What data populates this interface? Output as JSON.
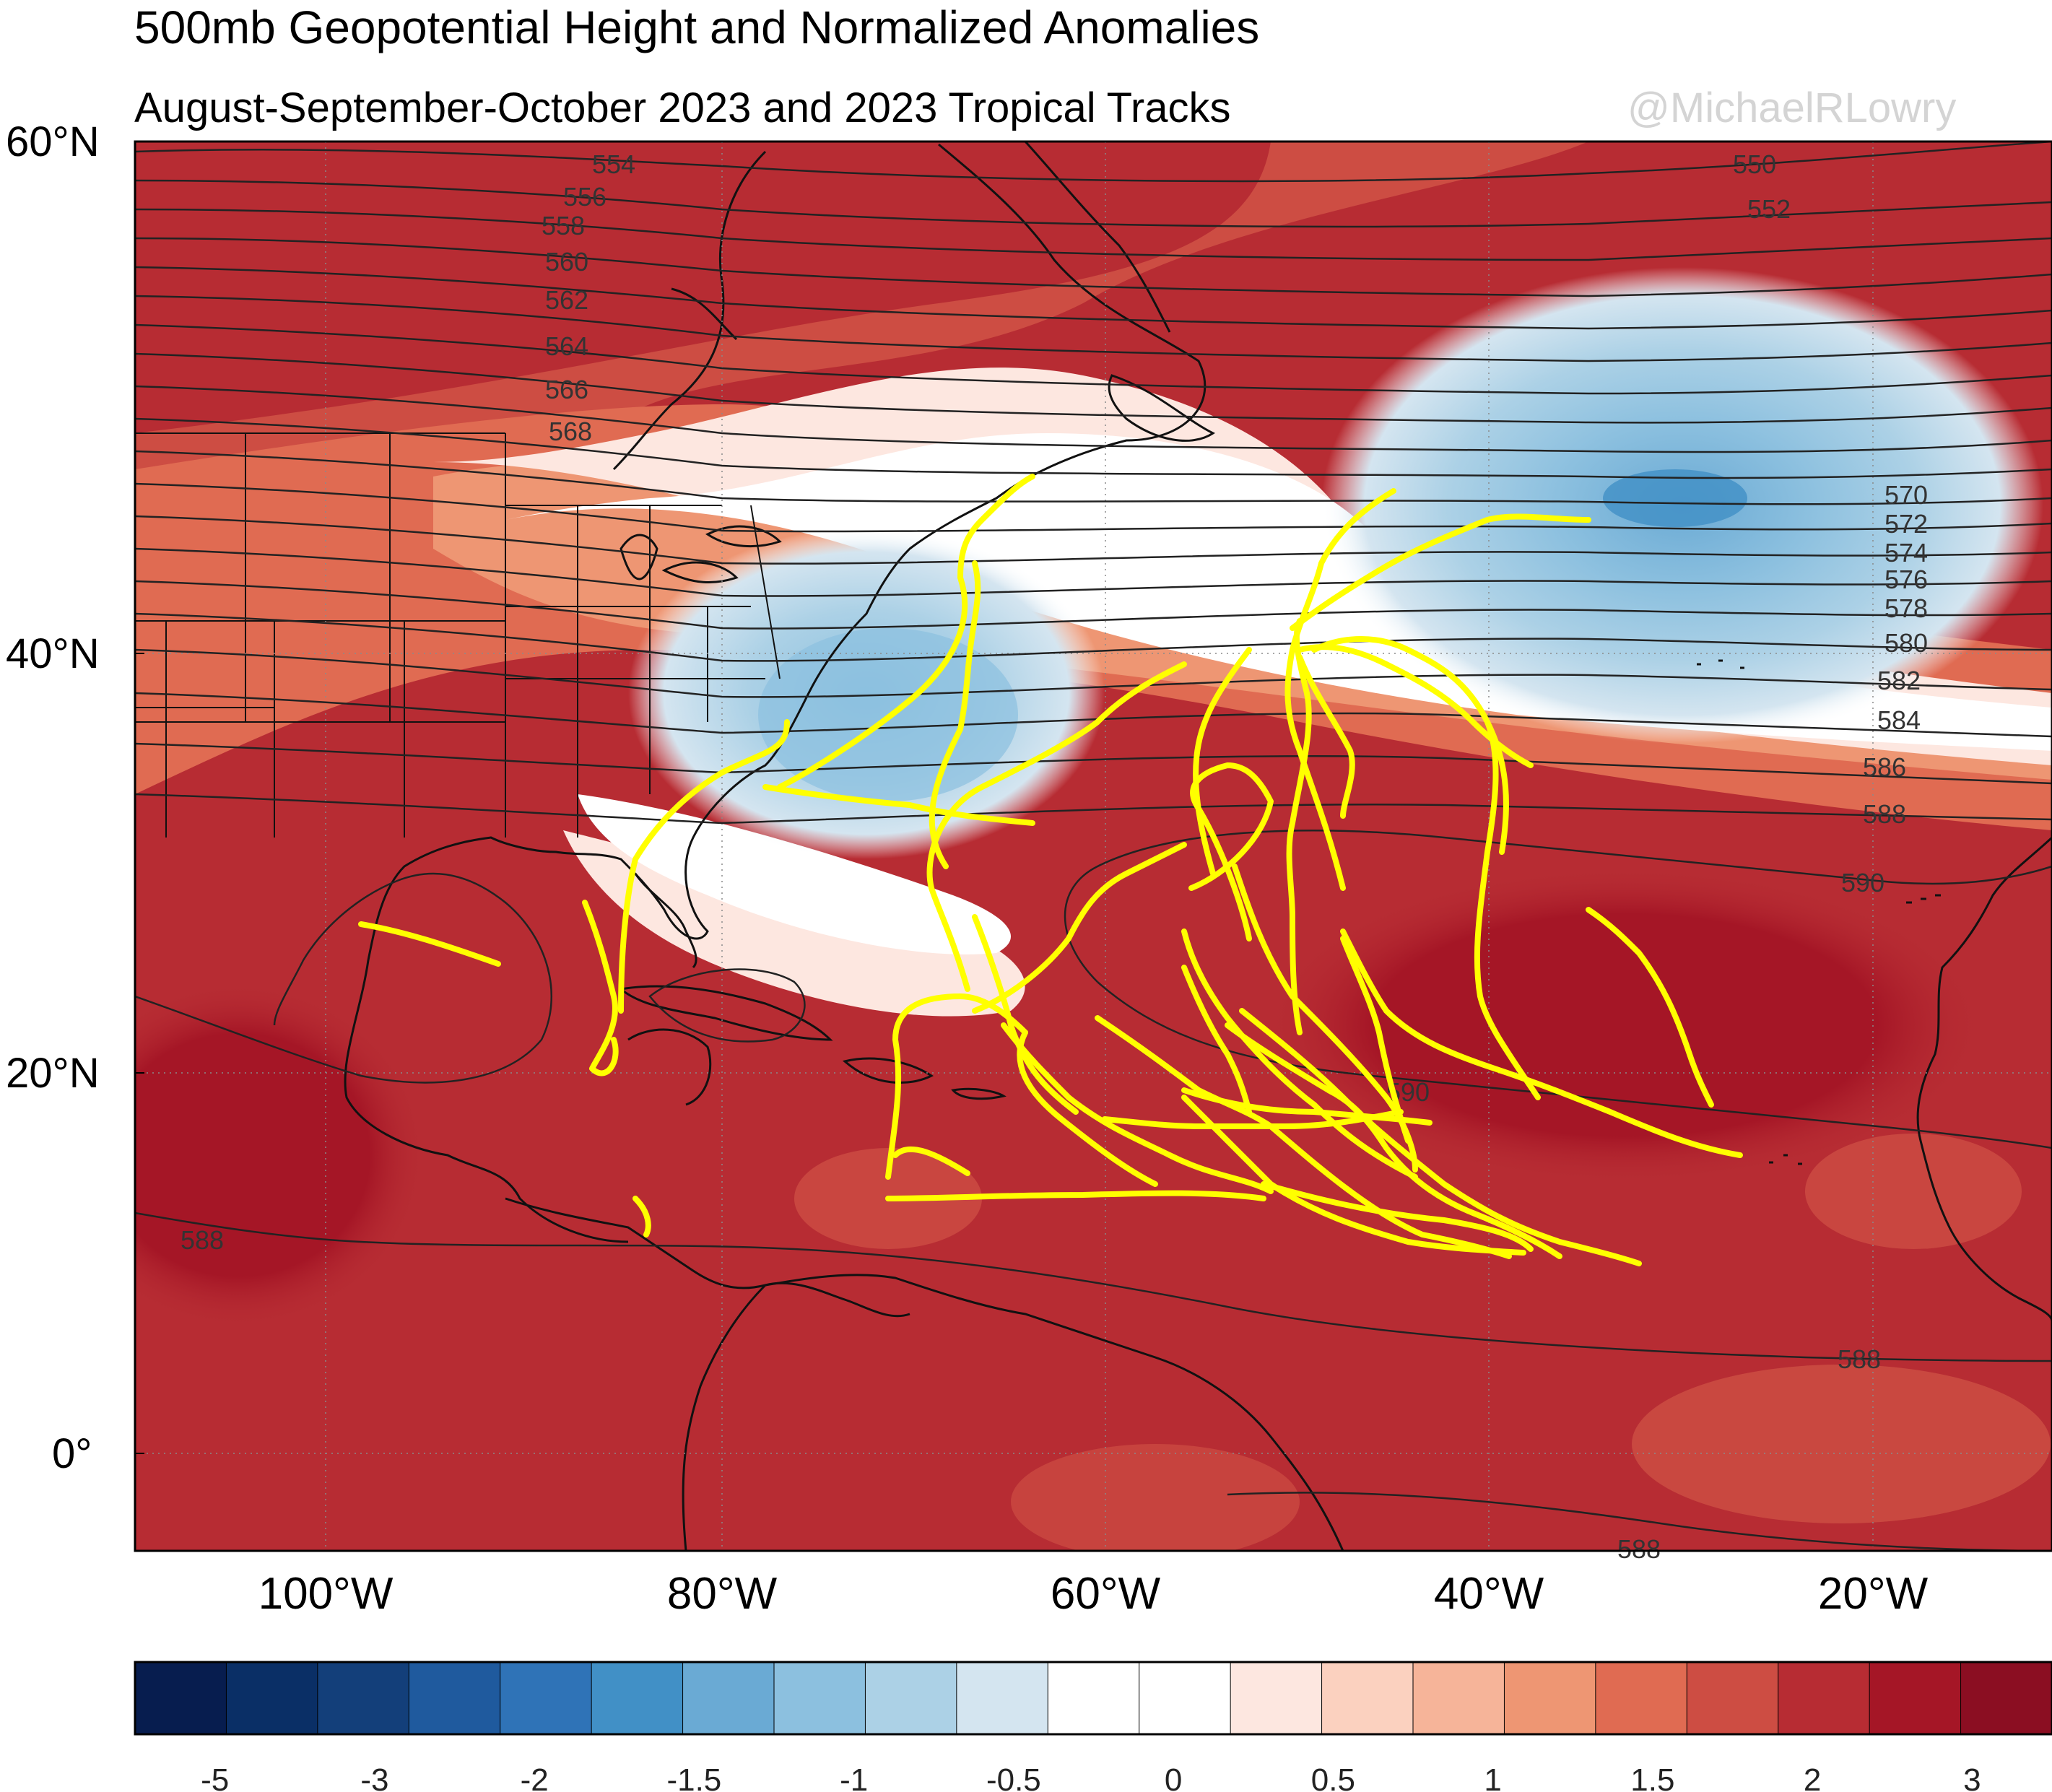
{
  "header": {
    "title": "500mb Geopotential Height and Normalized Anomalies",
    "subtitle": "August-September-October 2023 and 2023 Tropical Tracks",
    "credit": "@MichaelRLowry"
  },
  "map": {
    "region": "North Atlantic basin",
    "lon_range": [
      -110,
      -10
    ],
    "lat_range": [
      -5,
      60
    ],
    "lat_labels": [
      "60°N",
      "40°N",
      "20°N",
      "0°"
    ],
    "lon_labels": [
      "100°W",
      "80°W",
      "60°W",
      "40°W",
      "20°W"
    ],
    "contour_labels": [
      "550",
      "552",
      "554",
      "556",
      "558",
      "560",
      "562",
      "564",
      "566",
      "568",
      "570",
      "572",
      "574",
      "576",
      "578",
      "580",
      "582",
      "584",
      "586",
      "588",
      "590",
      "588",
      "588",
      "588",
      "590"
    ],
    "colors": {
      "track": "#ffff00",
      "strong_positive": "#a51626",
      "negative": "#6fa9d2",
      "neutral": "#ffffff"
    },
    "features": [
      "tropical-tracks",
      "height-contours",
      "normalized-anomaly-shading",
      "coastlines"
    ]
  },
  "colorbar": {
    "labels": [
      "-5",
      "-3",
      "-2",
      "-1.5",
      "-1",
      "-0.5",
      "0",
      "0.5",
      "1",
      "1.5",
      "2",
      "3"
    ],
    "colors": [
      "#071d4f",
      "#0a2f66",
      "#133f7a",
      "#1f5a9e",
      "#2f73b7",
      "#4190c6",
      "#6aaad4",
      "#8cc0df",
      "#acd1e6",
      "#d4e5f0",
      "#ffffff",
      "#ffffff",
      "#fde7e0",
      "#fbd1bf",
      "#f6b499",
      "#ee9673",
      "#e06b52",
      "#cd4d43",
      "#b72c33",
      "#a51626",
      "#8b0e22"
    ]
  }
}
